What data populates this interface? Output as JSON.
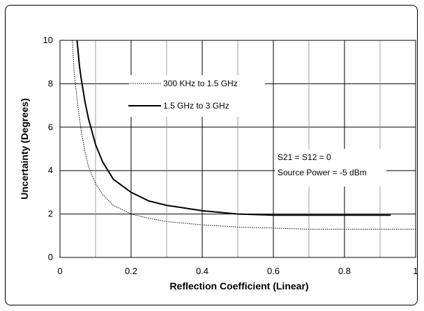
{
  "chart_data": {
    "type": "line",
    "title": "",
    "xlabel": "Reflection Coefficient (Linear)",
    "ylabel": "Uncertainty (Degrees)",
    "xlim": [
      0,
      1
    ],
    "ylim": [
      0,
      10
    ],
    "x_ticks": [
      "0",
      "0.2",
      "0.4",
      "0.6",
      "0.8",
      "1"
    ],
    "y_ticks": [
      "0",
      "2",
      "4",
      "6",
      "8",
      "10"
    ],
    "grid": true,
    "legend_position": "top-left",
    "series": [
      {
        "name": "300 KHz to 1.5 GHz",
        "style": "dotted",
        "color": "#000000",
        "points": [
          [
            0.035,
            10
          ],
          [
            0.04,
            8.5
          ],
          [
            0.05,
            7.0
          ],
          [
            0.06,
            5.8
          ],
          [
            0.07,
            4.9
          ],
          [
            0.08,
            4.2
          ],
          [
            0.1,
            3.4
          ],
          [
            0.12,
            2.9
          ],
          [
            0.15,
            2.4
          ],
          [
            0.2,
            2.0
          ],
          [
            0.25,
            1.8
          ],
          [
            0.3,
            1.65
          ],
          [
            0.4,
            1.5
          ],
          [
            0.5,
            1.4
          ],
          [
            0.6,
            1.35
          ],
          [
            0.7,
            1.3
          ],
          [
            0.8,
            1.3
          ],
          [
            0.9,
            1.3
          ],
          [
            1.0,
            1.3
          ]
        ]
      },
      {
        "name": "1.5 GHz to 3 GHz",
        "style": "solid",
        "color": "#000000",
        "points": [
          [
            0.048,
            10
          ],
          [
            0.055,
            8.8
          ],
          [
            0.06,
            8.2
          ],
          [
            0.07,
            7.2
          ],
          [
            0.08,
            6.4
          ],
          [
            0.1,
            5.2
          ],
          [
            0.12,
            4.4
          ],
          [
            0.15,
            3.6
          ],
          [
            0.2,
            3.0
          ],
          [
            0.25,
            2.6
          ],
          [
            0.3,
            2.4
          ],
          [
            0.4,
            2.15
          ],
          [
            0.5,
            2.0
          ],
          [
            0.6,
            1.95
          ],
          [
            0.7,
            1.95
          ],
          [
            0.8,
            1.95
          ],
          [
            0.93,
            1.95
          ]
        ]
      }
    ],
    "annotations": [
      "S21 = S12 = 0",
      "Source Power = -5 dBm"
    ]
  }
}
